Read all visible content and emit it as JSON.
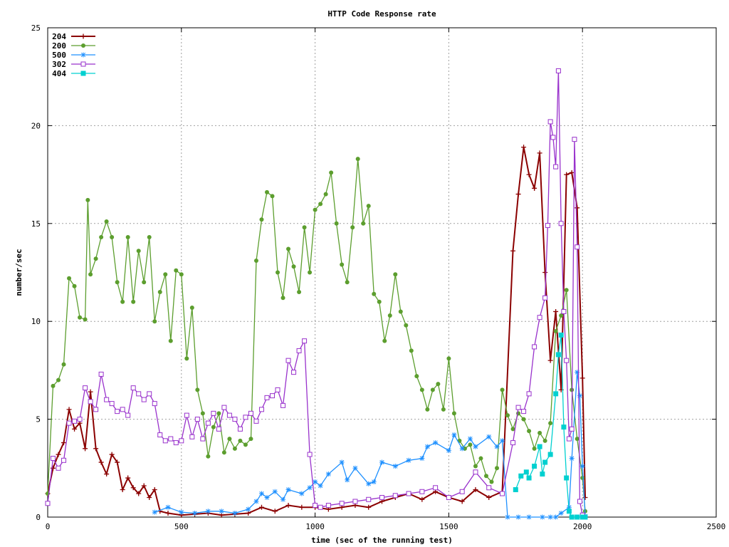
{
  "chart_data": {
    "type": "line",
    "title": "HTTP Code Response rate",
    "xlabel": "time (sec of the running test)",
    "ylabel": "number/sec",
    "xlim": [
      0,
      2500
    ],
    "ylim": [
      0,
      25
    ],
    "xticks": [
      0,
      500,
      1000,
      1500,
      2000,
      2500
    ],
    "yticks": [
      0,
      5,
      10,
      15,
      20,
      25
    ],
    "grid": true,
    "legend_position": "top-left",
    "series": [
      {
        "name": "204",
        "color": "#8b0000",
        "marker": "plus",
        "x": [
          0,
          20,
          40,
          60,
          80,
          100,
          120,
          140,
          160,
          180,
          200,
          220,
          240,
          260,
          280,
          300,
          320,
          340,
          360,
          380,
          400,
          420,
          450,
          500,
          550,
          600,
          650,
          700,
          750,
          800,
          850,
          900,
          950,
          1000,
          1050,
          1100,
          1150,
          1200,
          1250,
          1300,
          1350,
          1400,
          1450,
          1500,
          1550,
          1600,
          1650,
          1700,
          1740,
          1760,
          1780,
          1800,
          1820,
          1840,
          1860,
          1880,
          1900,
          1920,
          1940,
          1960,
          1980,
          2000,
          2010
        ],
        "y": [
          1.2,
          2.5,
          3.2,
          3.8,
          5.5,
          4.5,
          4.8,
          3.5,
          6.4,
          3.5,
          2.8,
          2.2,
          3.2,
          2.8,
          1.4,
          2.0,
          1.5,
          1.2,
          1.6,
          1.0,
          1.4,
          0.3,
          0.2,
          0.1,
          0.15,
          0.2,
          0.1,
          0.15,
          0.2,
          0.5,
          0.3,
          0.6,
          0.5,
          0.5,
          0.4,
          0.5,
          0.6,
          0.5,
          0.8,
          1.0,
          1.2,
          0.9,
          1.3,
          1.0,
          0.8,
          1.4,
          1.0,
          1.3,
          13.6,
          16.5,
          18.9,
          17.5,
          16.8,
          18.6,
          12.5,
          8.0,
          10.5,
          6.5,
          17.5,
          17.6,
          15.8,
          7.1,
          1.0
        ]
      },
      {
        "name": "200",
        "color": "#5c9e2e",
        "marker": "circle",
        "x": [
          0,
          20,
          40,
          60,
          80,
          100,
          120,
          140,
          150,
          160,
          180,
          200,
          220,
          240,
          260,
          280,
          300,
          320,
          340,
          360,
          380,
          400,
          420,
          440,
          460,
          480,
          500,
          520,
          540,
          560,
          580,
          600,
          620,
          640,
          660,
          680,
          700,
          720,
          740,
          760,
          780,
          800,
          820,
          840,
          860,
          880,
          900,
          920,
          940,
          960,
          980,
          1000,
          1020,
          1040,
          1060,
          1080,
          1100,
          1120,
          1140,
          1160,
          1180,
          1200,
          1220,
          1240,
          1260,
          1280,
          1300,
          1320,
          1340,
          1360,
          1380,
          1400,
          1420,
          1440,
          1460,
          1480,
          1500,
          1520,
          1540,
          1560,
          1580,
          1600,
          1620,
          1640,
          1660,
          1680,
          1700,
          1720,
          1740,
          1760,
          1780,
          1800,
          1820,
          1840,
          1860,
          1880,
          1900,
          1920,
          1940,
          1960,
          1980,
          2000,
          2010
        ],
        "y": [
          1.2,
          6.7,
          7.0,
          7.8,
          12.2,
          11.8,
          10.2,
          10.1,
          16.2,
          12.4,
          13.2,
          14.3,
          15.1,
          14.3,
          12.0,
          11.0,
          14.3,
          11.0,
          13.6,
          12.0,
          14.3,
          10.0,
          11.5,
          12.4,
          9.0,
          12.6,
          12.4,
          8.1,
          10.7,
          6.5,
          5.3,
          3.1,
          4.6,
          5.3,
          3.3,
          4.0,
          3.5,
          3.9,
          3.7,
          4.0,
          13.1,
          15.2,
          16.6,
          16.4,
          12.5,
          11.2,
          13.7,
          12.8,
          11.5,
          14.8,
          12.5,
          15.7,
          16.0,
          16.5,
          17.6,
          15.0,
          12.9,
          12.0,
          14.8,
          18.3,
          15.0,
          15.9,
          11.4,
          11.0,
          9.0,
          10.3,
          12.4,
          10.5,
          9.8,
          8.5,
          7.2,
          6.5,
          5.5,
          6.5,
          6.8,
          5.5,
          8.1,
          5.3,
          3.9,
          3.5,
          3.7,
          2.6,
          3.0,
          2.1,
          1.8,
          2.5,
          6.5,
          5.2,
          4.5,
          5.3,
          5.0,
          4.4,
          3.5,
          4.3,
          3.9,
          4.8,
          9.5,
          10.3,
          11.6,
          6.5,
          4.0,
          2.0,
          0.3
        ]
      },
      {
        "name": "500",
        "color": "#1e90ff",
        "marker": "star",
        "x": [
          400,
          450,
          500,
          550,
          600,
          650,
          700,
          750,
          780,
          800,
          820,
          850,
          880,
          900,
          950,
          980,
          1000,
          1020,
          1050,
          1100,
          1120,
          1150,
          1200,
          1220,
          1250,
          1300,
          1350,
          1400,
          1420,
          1450,
          1500,
          1520,
          1550,
          1580,
          1600,
          1650,
          1680,
          1700,
          1720,
          1760,
          1800,
          1850,
          1880,
          1900,
          1920,
          1950,
          1960,
          1980,
          1990,
          2000,
          2010
        ],
        "y": [
          0.25,
          0.5,
          0.25,
          0.2,
          0.3,
          0.3,
          0.2,
          0.4,
          0.8,
          1.2,
          1.0,
          1.3,
          0.9,
          1.4,
          1.2,
          1.5,
          1.8,
          1.6,
          2.2,
          2.8,
          1.9,
          2.5,
          1.7,
          1.8,
          2.8,
          2.6,
          2.9,
          3.0,
          3.6,
          3.8,
          3.4,
          4.2,
          3.5,
          4.0,
          3.6,
          4.1,
          3.6,
          3.9,
          0.0,
          0.0,
          0.0,
          0.0,
          0.0,
          0.0,
          0.2,
          0.5,
          3.0,
          7.4,
          6.2,
          2.6,
          0.05
        ]
      },
      {
        "name": "302",
        "color": "#9932cc",
        "marker": "square",
        "x": [
          0,
          20,
          40,
          60,
          80,
          100,
          120,
          140,
          160,
          180,
          200,
          220,
          240,
          260,
          280,
          300,
          320,
          340,
          360,
          380,
          400,
          420,
          440,
          460,
          480,
          500,
          520,
          540,
          560,
          580,
          600,
          620,
          640,
          660,
          680,
          700,
          720,
          740,
          760,
          780,
          800,
          820,
          840,
          860,
          880,
          900,
          920,
          940,
          960,
          980,
          1000,
          1020,
          1050,
          1100,
          1150,
          1200,
          1250,
          1300,
          1350,
          1400,
          1450,
          1500,
          1550,
          1600,
          1650,
          1700,
          1740,
          1760,
          1780,
          1800,
          1820,
          1840,
          1860,
          1870,
          1880,
          1890,
          1900,
          1910,
          1920,
          1930,
          1940,
          1950,
          1960,
          1970,
          1980,
          1990,
          2000
        ],
        "y": [
          0.7,
          3.0,
          2.5,
          2.9,
          4.8,
          4.9,
          5.0,
          6.6,
          5.9,
          5.5,
          7.3,
          6.0,
          5.8,
          5.4,
          5.5,
          5.2,
          6.6,
          6.3,
          6.0,
          6.3,
          5.8,
          4.2,
          3.9,
          4.0,
          3.8,
          3.9,
          5.2,
          4.1,
          5.0,
          4.0,
          4.8,
          5.3,
          4.5,
          5.6,
          5.2,
          5.0,
          4.5,
          5.1,
          5.3,
          4.9,
          5.5,
          6.1,
          6.2,
          6.5,
          5.7,
          8.0,
          7.4,
          8.5,
          9.0,
          3.2,
          0.6,
          0.5,
          0.6,
          0.7,
          0.8,
          0.9,
          1.0,
          1.1,
          1.2,
          1.3,
          1.5,
          1.0,
          1.3,
          2.3,
          1.5,
          1.2,
          3.8,
          5.6,
          5.4,
          6.3,
          8.7,
          10.2,
          11.2,
          14.9,
          20.2,
          19.4,
          17.9,
          22.8,
          15.0,
          10.5,
          8.0,
          4.0,
          4.5,
          19.3,
          13.8,
          0.8,
          0.1
        ]
      },
      {
        "name": "404",
        "color": "#00d0d0",
        "marker": "filled-square",
        "x": [
          1750,
          1770,
          1790,
          1800,
          1820,
          1840,
          1850,
          1860,
          1880,
          1900,
          1910,
          1920,
          1930,
          1940,
          1950,
          1960,
          1980,
          2000,
          2010
        ],
        "y": [
          1.4,
          2.1,
          2.3,
          2.0,
          2.6,
          3.6,
          2.2,
          2.8,
          3.2,
          6.3,
          8.3,
          9.3,
          4.6,
          2.0,
          0.3,
          0.0,
          0.0,
          0.0,
          0.0
        ]
      }
    ]
  }
}
